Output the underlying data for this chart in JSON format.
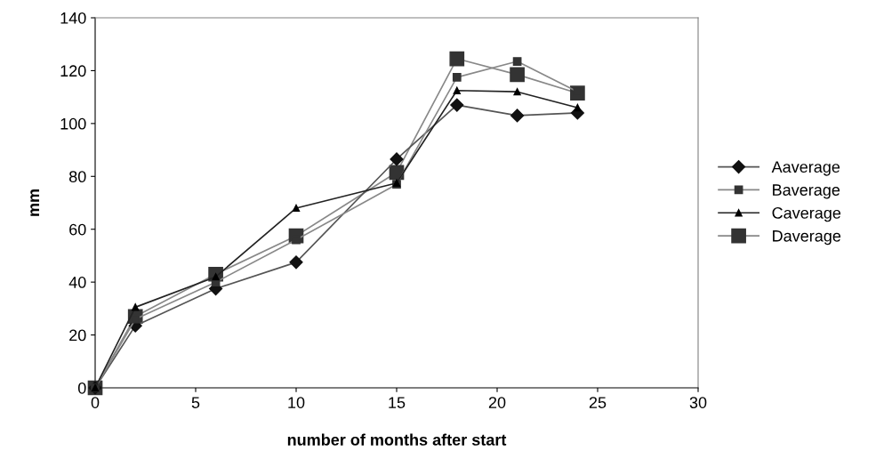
{
  "chart_data": {
    "type": "line",
    "xlabel": "number of months after start",
    "ylabel": "mm",
    "x": [
      0,
      2,
      6,
      10,
      15,
      18,
      21,
      24
    ],
    "series": [
      {
        "name": "Aaverage",
        "color": "#111111",
        "marker": "diamond",
        "values": [
          0,
          23.5,
          37.5,
          47.5,
          86.5,
          107,
          103,
          104
        ]
      },
      {
        "name": "Baverage",
        "color": "#333333",
        "marker": "square",
        "values": [
          0,
          26,
          40,
          56,
          77,
          117.5,
          123.5,
          112
        ]
      },
      {
        "name": "Caverage",
        "color": "#000000",
        "marker": "triangle",
        "values": [
          0,
          30.5,
          42,
          68,
          77.5,
          112.5,
          112,
          106
        ]
      },
      {
        "name": "Daverage",
        "color": "#333333",
        "marker": "square",
        "values": [
          0,
          27,
          43,
          57.5,
          81.5,
          124.5,
          118.5,
          111.5
        ]
      }
    ],
    "xlim": [
      0,
      30
    ],
    "xticks": [
      0,
      5,
      10,
      15,
      20,
      25,
      30
    ],
    "ylim": [
      0,
      140
    ],
    "yticks": [
      0,
      20,
      40,
      60,
      80,
      100,
      120,
      140
    ],
    "grid": false,
    "legend": "right",
    "line_style": "solid"
  }
}
